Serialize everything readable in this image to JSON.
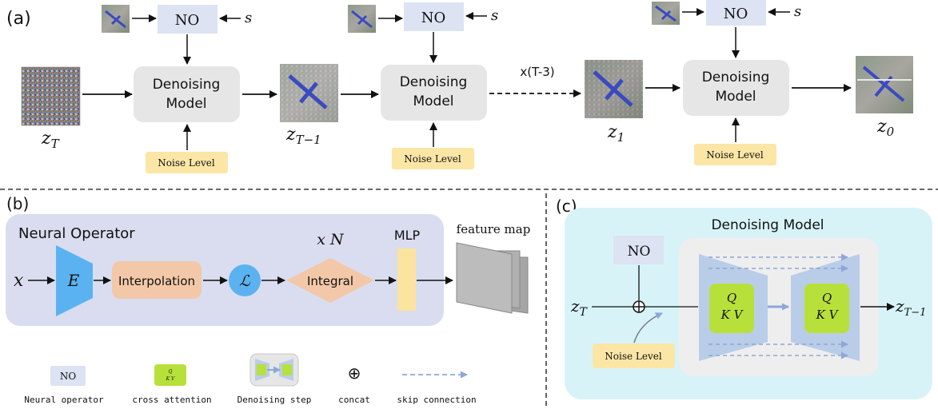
{
  "panel_a": {
    "label": "(a)",
    "no_label": "NO",
    "s_label": "s",
    "denoise_line1": "Denoising",
    "denoise_line2": "Model",
    "noise_level": "Noise Level",
    "repeat_label": "x(T-3)",
    "z_labels": {
      "zT": "z",
      "zT_sub": "T",
      "zT1": "z",
      "zT1_sub": "T−1",
      "z1": "z",
      "z1_sub": "1",
      "z0": "z",
      "z0_sub": "0"
    }
  },
  "panel_b": {
    "label": "(b)",
    "title": "Neural Operator",
    "input": "x",
    "encoder": "E",
    "interpolation": "Interpolation",
    "lift": "ℒ",
    "integral": "Integral",
    "repeat": "x N",
    "mlp": "MLP",
    "output": "feature map"
  },
  "panel_c": {
    "label": "(c)",
    "title": "Denoising Model",
    "no_label": "NO",
    "noise_level": "Noise Level",
    "input": "z",
    "input_sub": "T",
    "output": "z",
    "output_sub": "T−1",
    "attn_q": "Q",
    "attn_kv": "K V"
  },
  "legend": {
    "items": [
      {
        "symbol": "NO",
        "text": "Neural operator"
      },
      {
        "symbol": "",
        "text": "cross attention"
      },
      {
        "symbol": "",
        "text": "Denoising step"
      },
      {
        "symbol": "⊕",
        "text": "concat"
      },
      {
        "symbol": "",
        "text": "skip connection"
      }
    ]
  },
  "colors": {
    "no_box": "#dde3f3",
    "denoise_box": "#e6e6e6",
    "noise_box": "#fbe6a6",
    "panel_b_bg": "#d9ddef",
    "panel_c_bg": "#d7f3f8",
    "encoder": "#5ab3f0",
    "interp": "#f3c8a8",
    "mlp": "#fbe3a0",
    "attn": "#b8e03a",
    "unet": "#b9cde8"
  }
}
